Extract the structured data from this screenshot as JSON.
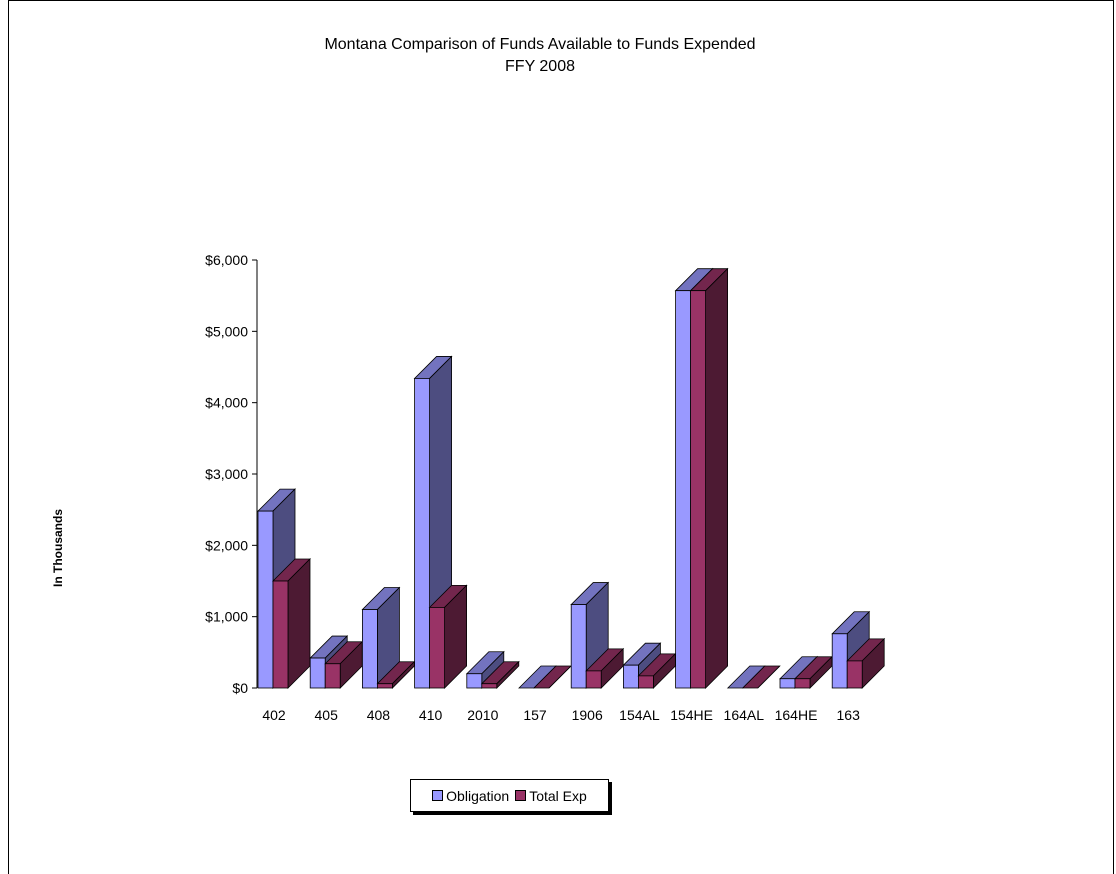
{
  "chart_data": {
    "type": "bar",
    "title": "Montana Comparison of Funds Available to Funds Expended",
    "subtitle": "FFY 2008",
    "xlabel": "",
    "ylabel": "In Thousands",
    "categories": [
      "402",
      "405",
      "408",
      "410",
      "2010",
      "157",
      "1906",
      "154AL",
      "154HE",
      "164AL",
      "164HE",
      "163"
    ],
    "series": [
      {
        "name": "Obligation",
        "values": [
          2480,
          420,
          1100,
          4340,
          200,
          0,
          1170,
          320,
          5570,
          0,
          130,
          760
        ],
        "color": "#9999ff",
        "side_color": "#4d4d80",
        "top_color": "#7373bf"
      },
      {
        "name": "Total Exp",
        "values": [
          1500,
          340,
          60,
          1130,
          60,
          0,
          240,
          170,
          5570,
          0,
          130,
          380
        ],
        "color": "#993366",
        "side_color": "#4d1a33",
        "top_color": "#73264d"
      }
    ],
    "ylim": [
      0,
      6000
    ],
    "yticks": [
      0,
      1000,
      2000,
      3000,
      4000,
      5000,
      6000
    ],
    "ytick_labels": [
      "$0",
      "$1,000",
      "$2,000",
      "$3,000",
      "$4,000",
      "$5,000",
      "$6,000"
    ],
    "legend_position": "bottom",
    "grid": false
  }
}
